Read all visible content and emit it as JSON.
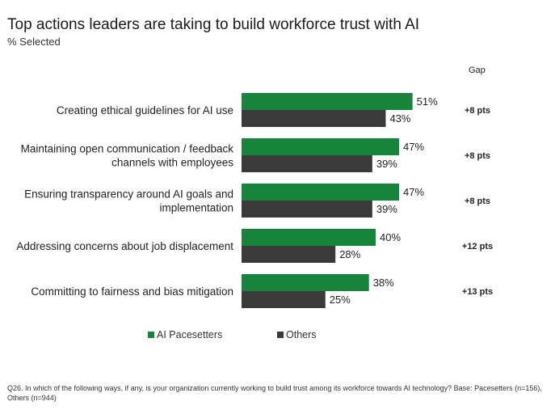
{
  "chart_data": {
    "type": "bar",
    "orientation": "horizontal",
    "title": "Top actions leaders are taking to build workforce trust with AI",
    "subtitle": "% Selected",
    "gap_header": "Gap",
    "categories": [
      "Creating ethical guidelines for AI use",
      "Maintaining open communication / feedback channels with employees",
      "Ensuring transparency around AI goals and implementation",
      "Addressing concerns about job displacement",
      "Committing to fairness and bias mitigation"
    ],
    "category_lines": [
      [
        "Creating ethical guidelines for AI use"
      ],
      [
        "Maintaining open communication / feedback",
        "channels with employees"
      ],
      [
        "Ensuring transparency around AI goals and",
        "implementation"
      ],
      [
        "Addressing concerns about job displacement"
      ],
      [
        "Committing to fairness and bias mitigation"
      ]
    ],
    "series": [
      {
        "name": "AI Pacesetters",
        "values": [
          51,
          47,
          47,
          40,
          38
        ],
        "color": "#17843c"
      },
      {
        "name": "Others",
        "values": [
          43,
          39,
          39,
          28,
          25
        ],
        "color": "#3a3a3a"
      }
    ],
    "value_suffix": "%",
    "gaps": [
      "+8 pts",
      "+8 pts",
      "+8 pts",
      "+12 pts",
      "+13 pts"
    ],
    "legend_position": "bottom",
    "grid": false
  },
  "footnote": "Q26. In which of the following ways, if any, is your organization currently working to build trust among its workforce towards AI technology? Base: Pacesetters (n=156), Others (n=944)"
}
